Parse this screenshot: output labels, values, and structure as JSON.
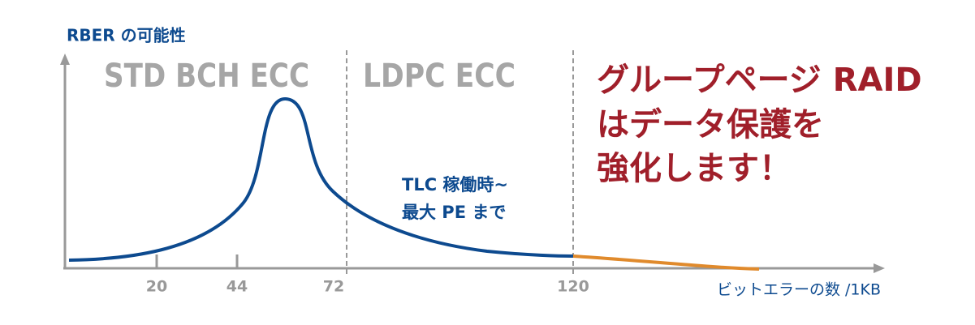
{
  "y_axis_label": "RBER の可能性",
  "x_axis_label": "ビットエラーの数 /1KB",
  "x_ticks": [
    "20",
    "44",
    "72",
    "120"
  ],
  "regions": [
    "STD BCH ECC",
    "LDPC ECC"
  ],
  "annotation": [
    "TLC 稼働時~",
    "最大 PE まで"
  ],
  "callout": [
    "グループページ RAID",
    "はデータ保護を",
    "強化します！"
  ]
}
